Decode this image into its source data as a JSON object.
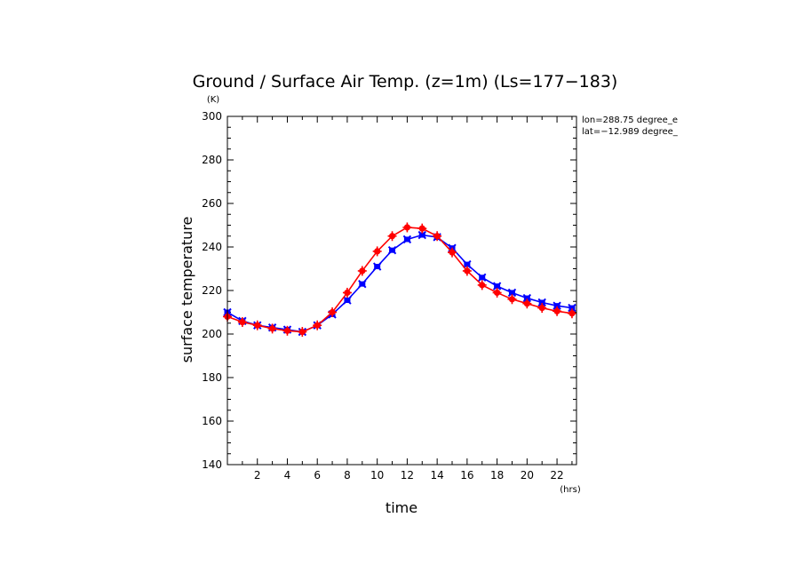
{
  "chart_data": {
    "type": "line",
    "title": "Ground / Surface Air Temp. (z=1m) (Ls=177−183)",
    "xlabel": "time",
    "ylabel": "surface temperature",
    "x_unit": "(hrs)",
    "y_unit": "(K)",
    "xlim": [
      0,
      23.3
    ],
    "ylim": [
      140,
      300
    ],
    "x_ticks": [
      2,
      4,
      6,
      8,
      10,
      12,
      14,
      16,
      18,
      20,
      22
    ],
    "y_ticks": [
      140,
      160,
      180,
      200,
      220,
      240,
      260,
      280,
      300
    ],
    "grid": false,
    "info_lines": [
      "lon=288.75 degree_e",
      "lat=−12.989 degree_"
    ],
    "x": [
      0,
      1,
      2,
      3,
      4,
      5,
      6,
      7,
      8,
      9,
      10,
      11,
      12,
      13,
      14,
      15,
      16,
      17,
      18,
      19,
      20,
      21,
      22,
      23
    ],
    "series": [
      {
        "color": "#0000ff",
        "marker": "x",
        "values": [
          210,
          206,
          204,
          203,
          202,
          201,
          204,
          209,
          215.5,
          223,
          231,
          238.5,
          243.5,
          245.5,
          244.5,
          239.5,
          232,
          226,
          222,
          219,
          216.5,
          214.5,
          213,
          212
        ]
      },
      {
        "color": "#ff0000",
        "marker": "+",
        "values": [
          208,
          205.5,
          204,
          202.5,
          201.5,
          201,
          204,
          210,
          219,
          229,
          238,
          245,
          249,
          248.5,
          245,
          237.5,
          229,
          222.5,
          219,
          216,
          214,
          212,
          210.5,
          209.5
        ]
      }
    ]
  }
}
